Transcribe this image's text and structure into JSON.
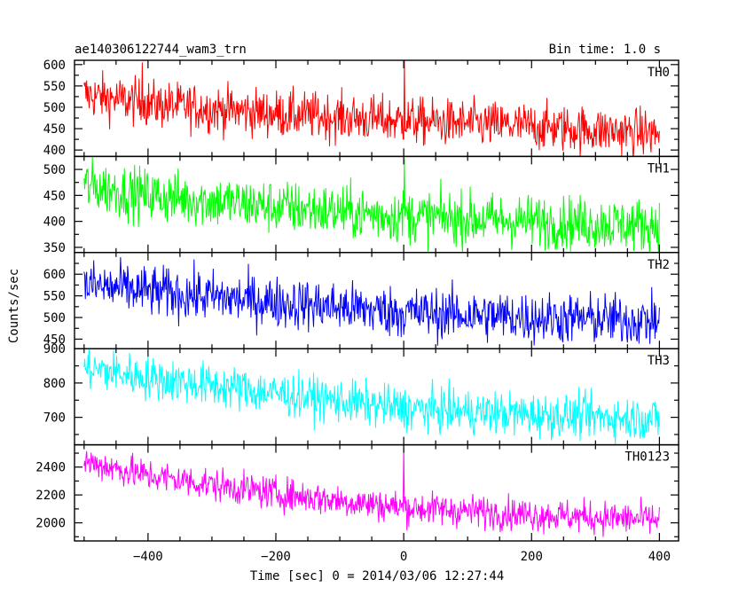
{
  "chart_data": {
    "type": "line",
    "title": "ae140306122744_wam3_trn",
    "subtitle": "Bin time: 1.0 s",
    "xlabel": "Time [sec] 0 = 2014/03/06 12:27:44",
    "ylabel": "Counts/sec",
    "xlim": [
      -515,
      430
    ],
    "xticks": [
      -400,
      -200,
      0,
      200,
      400
    ],
    "panels": [
      {
        "name": "TH0",
        "color": "#ff0000",
        "ylim": [
          385,
          610
        ],
        "yticks": [
          400,
          450,
          500,
          550,
          600
        ],
        "trend": [
          [
            -500,
            530
          ],
          [
            -400,
            508
          ],
          [
            -200,
            485
          ],
          [
            0,
            468
          ],
          [
            200,
            455
          ],
          [
            400,
            438
          ]
        ],
        "noise": 28,
        "spikes": [
          [
            -409,
            605
          ],
          [
            1,
            612
          ]
        ]
      },
      {
        "name": "TH1",
        "color": "#00ff00",
        "ylim": [
          340,
          525
        ],
        "yticks": [
          350,
          400,
          450,
          500
        ],
        "trend": [
          [
            -500,
            470
          ],
          [
            -400,
            450
          ],
          [
            -200,
            428
          ],
          [
            0,
            410
          ],
          [
            200,
            400
          ],
          [
            400,
            392
          ]
        ],
        "noise": 26,
        "spikes": [
          [
            1,
            520
          ]
        ]
      },
      {
        "name": "TH2",
        "color": "#0000ff",
        "ylim": [
          428,
          650
        ],
        "yticks": [
          450,
          500,
          550,
          600
        ],
        "trend": [
          [
            -500,
            575
          ],
          [
            -400,
            560
          ],
          [
            -200,
            535
          ],
          [
            0,
            512
          ],
          [
            200,
            500
          ],
          [
            400,
            492
          ]
        ],
        "noise": 30,
        "spikes": []
      },
      {
        "name": "TH3",
        "color": "#00ffff",
        "ylim": [
          620,
          900
        ],
        "yticks": [
          700,
          800,
          900
        ],
        "trend": [
          [
            -500,
            845
          ],
          [
            -400,
            815
          ],
          [
            -200,
            770
          ],
          [
            0,
            725
          ],
          [
            200,
            708
          ],
          [
            400,
            695
          ]
        ],
        "noise": 32,
        "spikes": []
      },
      {
        "name": "TH0123",
        "color": "#ff00ff",
        "ylim": [
          1870,
          2560
        ],
        "yticks": [
          2000,
          2200,
          2400
        ],
        "trend": [
          [
            -500,
            2440
          ],
          [
            -400,
            2340
          ],
          [
            -200,
            2210
          ],
          [
            0,
            2110
          ],
          [
            200,
            2060
          ],
          [
            400,
            2020
          ]
        ],
        "noise": 60,
        "spikes": [
          [
            0,
            2540
          ]
        ]
      }
    ]
  }
}
